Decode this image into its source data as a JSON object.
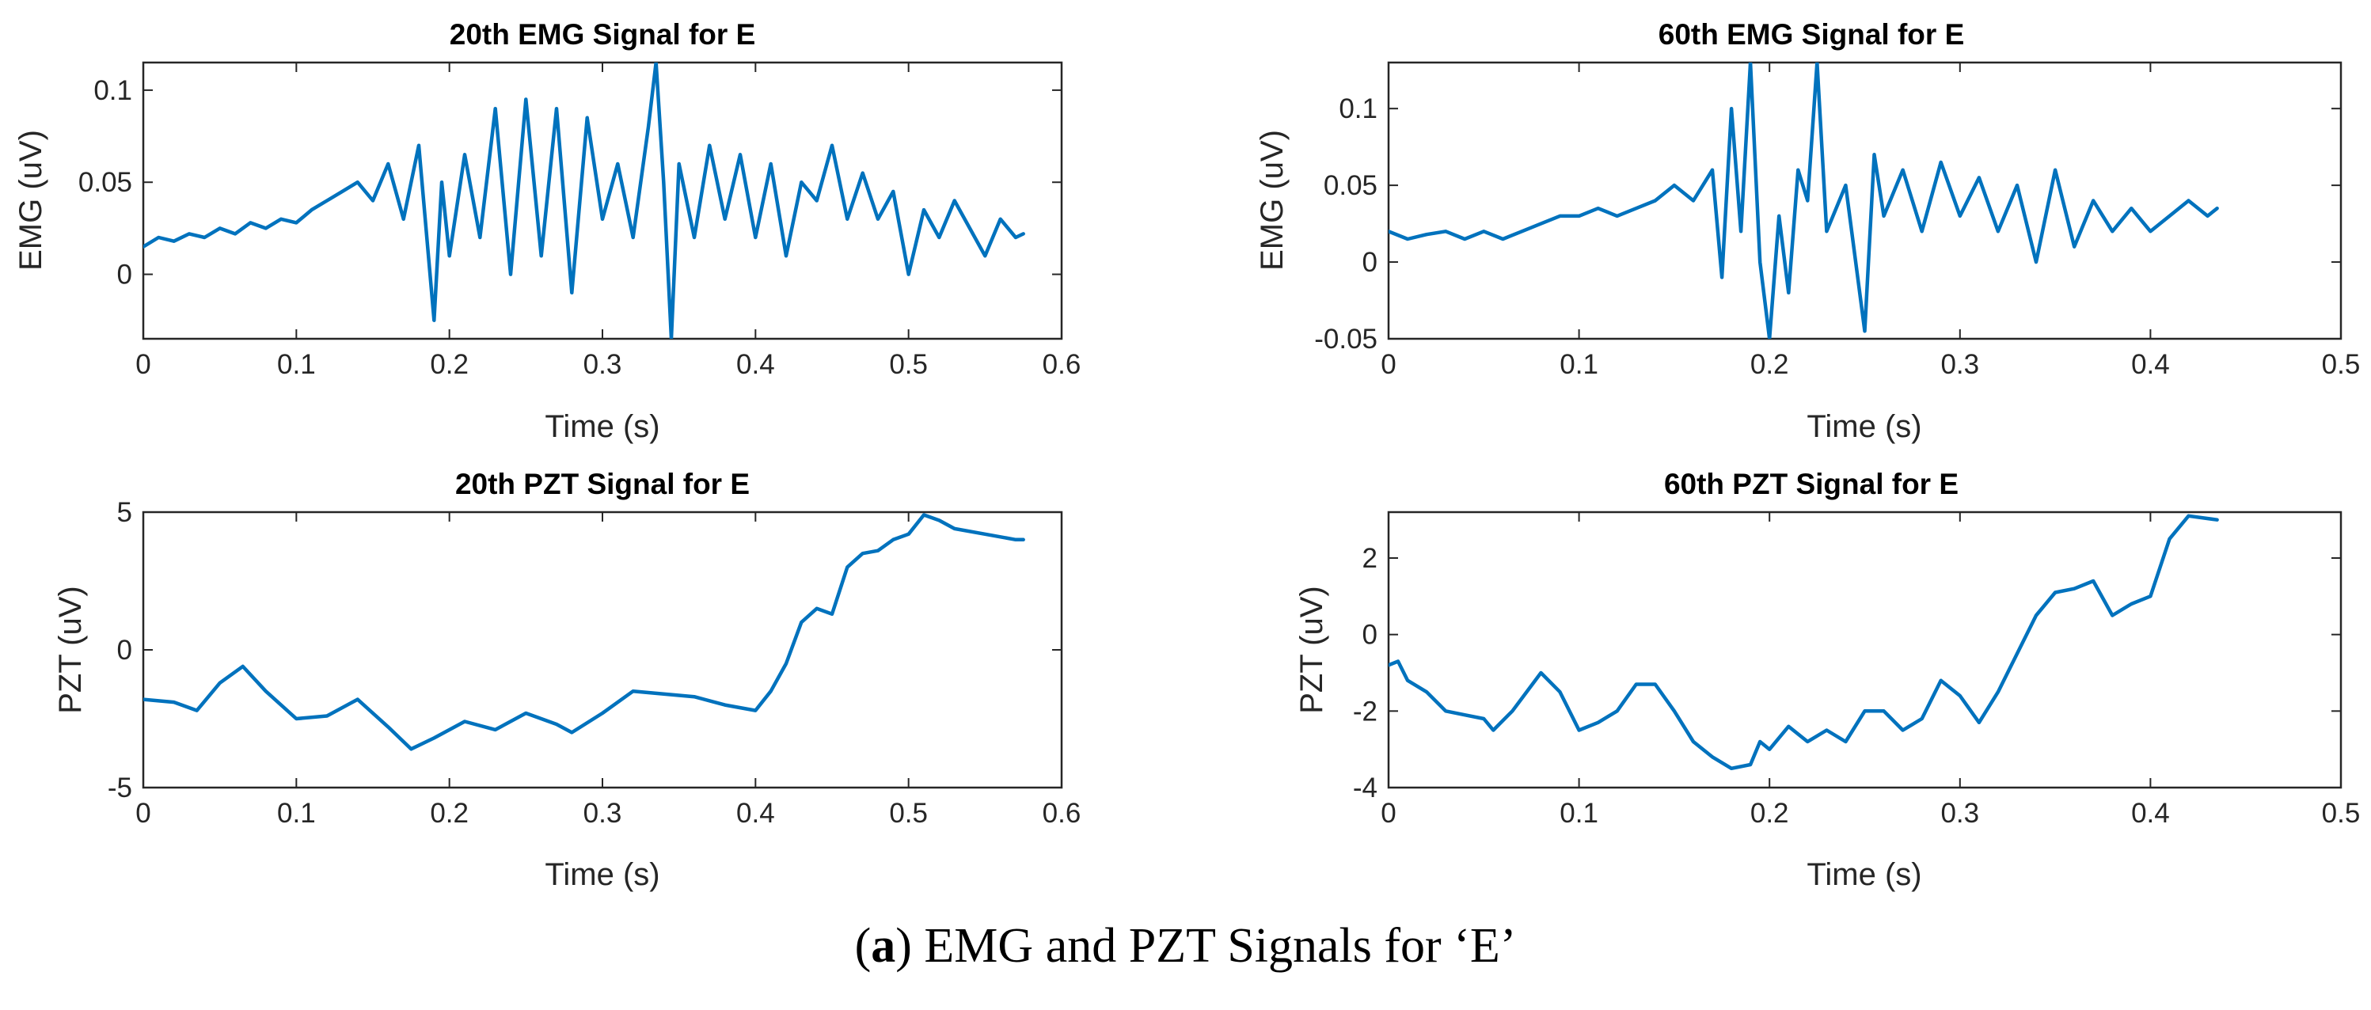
{
  "colors": {
    "line": "#0072bd",
    "axis": "#262626"
  },
  "caption": {
    "open": "(",
    "letter": "a",
    "rest": ") EMG and PZT Signals for ‘E’"
  },
  "chart_data": [
    {
      "id": "emg20",
      "type": "line",
      "title": "20th EMG Signal for E",
      "xlabel": "Time (s)",
      "ylabel": "EMG (uV)",
      "xlim": [
        0,
        0.6
      ],
      "ylim": [
        -0.035,
        0.115
      ],
      "xticks": [
        0,
        0.1,
        0.2,
        0.3,
        0.4,
        0.5,
        0.6
      ],
      "xtick_labels": [
        "0",
        "0.1",
        "0.2",
        "0.3",
        "0.4",
        "0.5",
        "0.6"
      ],
      "yticks": [
        0,
        0.05,
        0.1
      ],
      "ytick_labels": [
        "0",
        "0.05",
        "0.1"
      ],
      "series": [
        {
          "name": "EMG",
          "x": [
            0,
            0.01,
            0.02,
            0.03,
            0.04,
            0.05,
            0.06,
            0.07,
            0.08,
            0.09,
            0.1,
            0.11,
            0.12,
            0.13,
            0.14,
            0.15,
            0.16,
            0.17,
            0.18,
            0.19,
            0.195,
            0.2,
            0.21,
            0.22,
            0.23,
            0.24,
            0.25,
            0.26,
            0.27,
            0.28,
            0.29,
            0.3,
            0.31,
            0.32,
            0.33,
            0.335,
            0.34,
            0.345,
            0.35,
            0.36,
            0.37,
            0.38,
            0.39,
            0.4,
            0.41,
            0.42,
            0.43,
            0.44,
            0.45,
            0.46,
            0.47,
            0.48,
            0.49,
            0.5,
            0.51,
            0.52,
            0.53,
            0.54,
            0.55,
            0.56,
            0.57,
            0.575
          ],
          "y": [
            0.015,
            0.02,
            0.018,
            0.022,
            0.02,
            0.025,
            0.022,
            0.028,
            0.025,
            0.03,
            0.028,
            0.035,
            0.04,
            0.045,
            0.05,
            0.04,
            0.06,
            0.03,
            0.07,
            -0.025,
            0.05,
            0.01,
            0.065,
            0.02,
            0.09,
            0.0,
            0.095,
            0.01,
            0.09,
            -0.01,
            0.085,
            0.03,
            0.06,
            0.02,
            0.08,
            0.115,
            0.05,
            -0.035,
            0.06,
            0.02,
            0.07,
            0.03,
            0.065,
            0.02,
            0.06,
            0.01,
            0.05,
            0.04,
            0.07,
            0.03,
            0.055,
            0.03,
            0.045,
            0.0,
            0.035,
            0.02,
            0.04,
            0.025,
            0.01,
            0.03,
            0.02,
            0.022
          ]
        }
      ]
    },
    {
      "id": "emg60",
      "type": "line",
      "title": "60th EMG Signal for E",
      "xlabel": "Time (s)",
      "ylabel": "EMG (uV)",
      "xlim": [
        0,
        0.5
      ],
      "ylim": [
        -0.05,
        0.13
      ],
      "xticks": [
        0,
        0.1,
        0.2,
        0.3,
        0.4,
        0.5
      ],
      "xtick_labels": [
        "0",
        "0.1",
        "0.2",
        "0.3",
        "0.4",
        "0.5"
      ],
      "yticks": [
        -0.05,
        0,
        0.05,
        0.1
      ],
      "ytick_labels": [
        "-0.05",
        "0",
        "0.05",
        "0.1"
      ],
      "series": [
        {
          "name": "EMG",
          "x": [
            0,
            0.01,
            0.02,
            0.03,
            0.04,
            0.05,
            0.06,
            0.07,
            0.08,
            0.09,
            0.1,
            0.11,
            0.12,
            0.13,
            0.14,
            0.15,
            0.16,
            0.17,
            0.175,
            0.18,
            0.185,
            0.19,
            0.195,
            0.2,
            0.205,
            0.21,
            0.215,
            0.22,
            0.225,
            0.23,
            0.24,
            0.25,
            0.255,
            0.26,
            0.27,
            0.28,
            0.29,
            0.3,
            0.31,
            0.32,
            0.33,
            0.34,
            0.35,
            0.36,
            0.37,
            0.38,
            0.39,
            0.4,
            0.41,
            0.42,
            0.43,
            0.435
          ],
          "y": [
            0.02,
            0.015,
            0.018,
            0.02,
            0.015,
            0.02,
            0.015,
            0.02,
            0.025,
            0.03,
            0.03,
            0.035,
            0.03,
            0.035,
            0.04,
            0.05,
            0.04,
            0.06,
            -0.01,
            0.1,
            0.02,
            0.13,
            0.0,
            -0.05,
            0.03,
            -0.02,
            0.06,
            0.04,
            0.13,
            0.02,
            0.05,
            -0.045,
            0.07,
            0.03,
            0.06,
            0.02,
            0.065,
            0.03,
            0.055,
            0.02,
            0.05,
            0.0,
            0.06,
            0.01,
            0.04,
            0.02,
            0.035,
            0.02,
            0.03,
            0.04,
            0.03,
            0.035
          ]
        }
      ]
    },
    {
      "id": "pzt20",
      "type": "line",
      "title": "20th PZT Signal for E",
      "xlabel": "Time (s)",
      "ylabel": "PZT (uV)",
      "xlim": [
        0,
        0.6
      ],
      "ylim": [
        -5,
        5
      ],
      "xticks": [
        0,
        0.1,
        0.2,
        0.3,
        0.4,
        0.5,
        0.6
      ],
      "xtick_labels": [
        "0",
        "0.1",
        "0.2",
        "0.3",
        "0.4",
        "0.5",
        "0.6"
      ],
      "yticks": [
        -5,
        0,
        5
      ],
      "ytick_labels": [
        "-5",
        "0",
        "5"
      ],
      "series": [
        {
          "name": "PZT",
          "x": [
            0,
            0.02,
            0.035,
            0.05,
            0.065,
            0.08,
            0.1,
            0.12,
            0.14,
            0.16,
            0.175,
            0.19,
            0.21,
            0.23,
            0.25,
            0.27,
            0.28,
            0.3,
            0.32,
            0.34,
            0.36,
            0.38,
            0.4,
            0.41,
            0.42,
            0.43,
            0.44,
            0.45,
            0.46,
            0.47,
            0.48,
            0.49,
            0.5,
            0.51,
            0.52,
            0.53,
            0.55,
            0.57,
            0.575
          ],
          "y": [
            -1.8,
            -1.9,
            -2.2,
            -1.2,
            -0.6,
            -1.5,
            -2.5,
            -2.4,
            -1.8,
            -2.8,
            -3.6,
            -3.2,
            -2.6,
            -2.9,
            -2.3,
            -2.7,
            -3.0,
            -2.3,
            -1.5,
            -1.6,
            -1.7,
            -2.0,
            -2.2,
            -1.5,
            -0.5,
            1.0,
            1.5,
            1.3,
            3.0,
            3.5,
            3.6,
            4.0,
            4.2,
            4.9,
            4.7,
            4.4,
            4.2,
            4.0,
            4.0
          ]
        }
      ]
    },
    {
      "id": "pzt60",
      "type": "line",
      "title": "60th PZT Signal for E",
      "xlabel": "Time (s)",
      "ylabel": "PZT (uV)",
      "xlim": [
        0,
        0.5
      ],
      "ylim": [
        -4,
        3.2
      ],
      "xticks": [
        0,
        0.1,
        0.2,
        0.3,
        0.4,
        0.5
      ],
      "xtick_labels": [
        "0",
        "0.1",
        "0.2",
        "0.3",
        "0.4",
        "0.5"
      ],
      "yticks": [
        -4,
        -2,
        0,
        2
      ],
      "ytick_labels": [
        "-4",
        "-2",
        "0",
        "2"
      ],
      "series": [
        {
          "name": "PZT",
          "x": [
            0,
            0.005,
            0.01,
            0.02,
            0.03,
            0.04,
            0.05,
            0.055,
            0.065,
            0.08,
            0.09,
            0.1,
            0.11,
            0.12,
            0.13,
            0.14,
            0.15,
            0.16,
            0.17,
            0.18,
            0.19,
            0.195,
            0.2,
            0.21,
            0.22,
            0.23,
            0.24,
            0.25,
            0.26,
            0.27,
            0.28,
            0.29,
            0.3,
            0.31,
            0.32,
            0.33,
            0.34,
            0.35,
            0.36,
            0.37,
            0.38,
            0.39,
            0.4,
            0.41,
            0.42,
            0.435
          ],
          "y": [
            -0.8,
            -0.7,
            -1.2,
            -1.5,
            -2.0,
            -2.1,
            -2.2,
            -2.5,
            -2.0,
            -1.0,
            -1.5,
            -2.5,
            -2.3,
            -2.0,
            -1.3,
            -1.3,
            -2.0,
            -2.8,
            -3.2,
            -3.5,
            -3.4,
            -2.8,
            -3.0,
            -2.4,
            -2.8,
            -2.5,
            -2.8,
            -2.0,
            -2.0,
            -2.5,
            -2.2,
            -1.2,
            -1.6,
            -2.3,
            -1.5,
            -0.5,
            0.5,
            1.1,
            1.2,
            1.4,
            0.5,
            0.8,
            1.0,
            2.5,
            3.1,
            3.0
          ]
        }
      ]
    }
  ]
}
